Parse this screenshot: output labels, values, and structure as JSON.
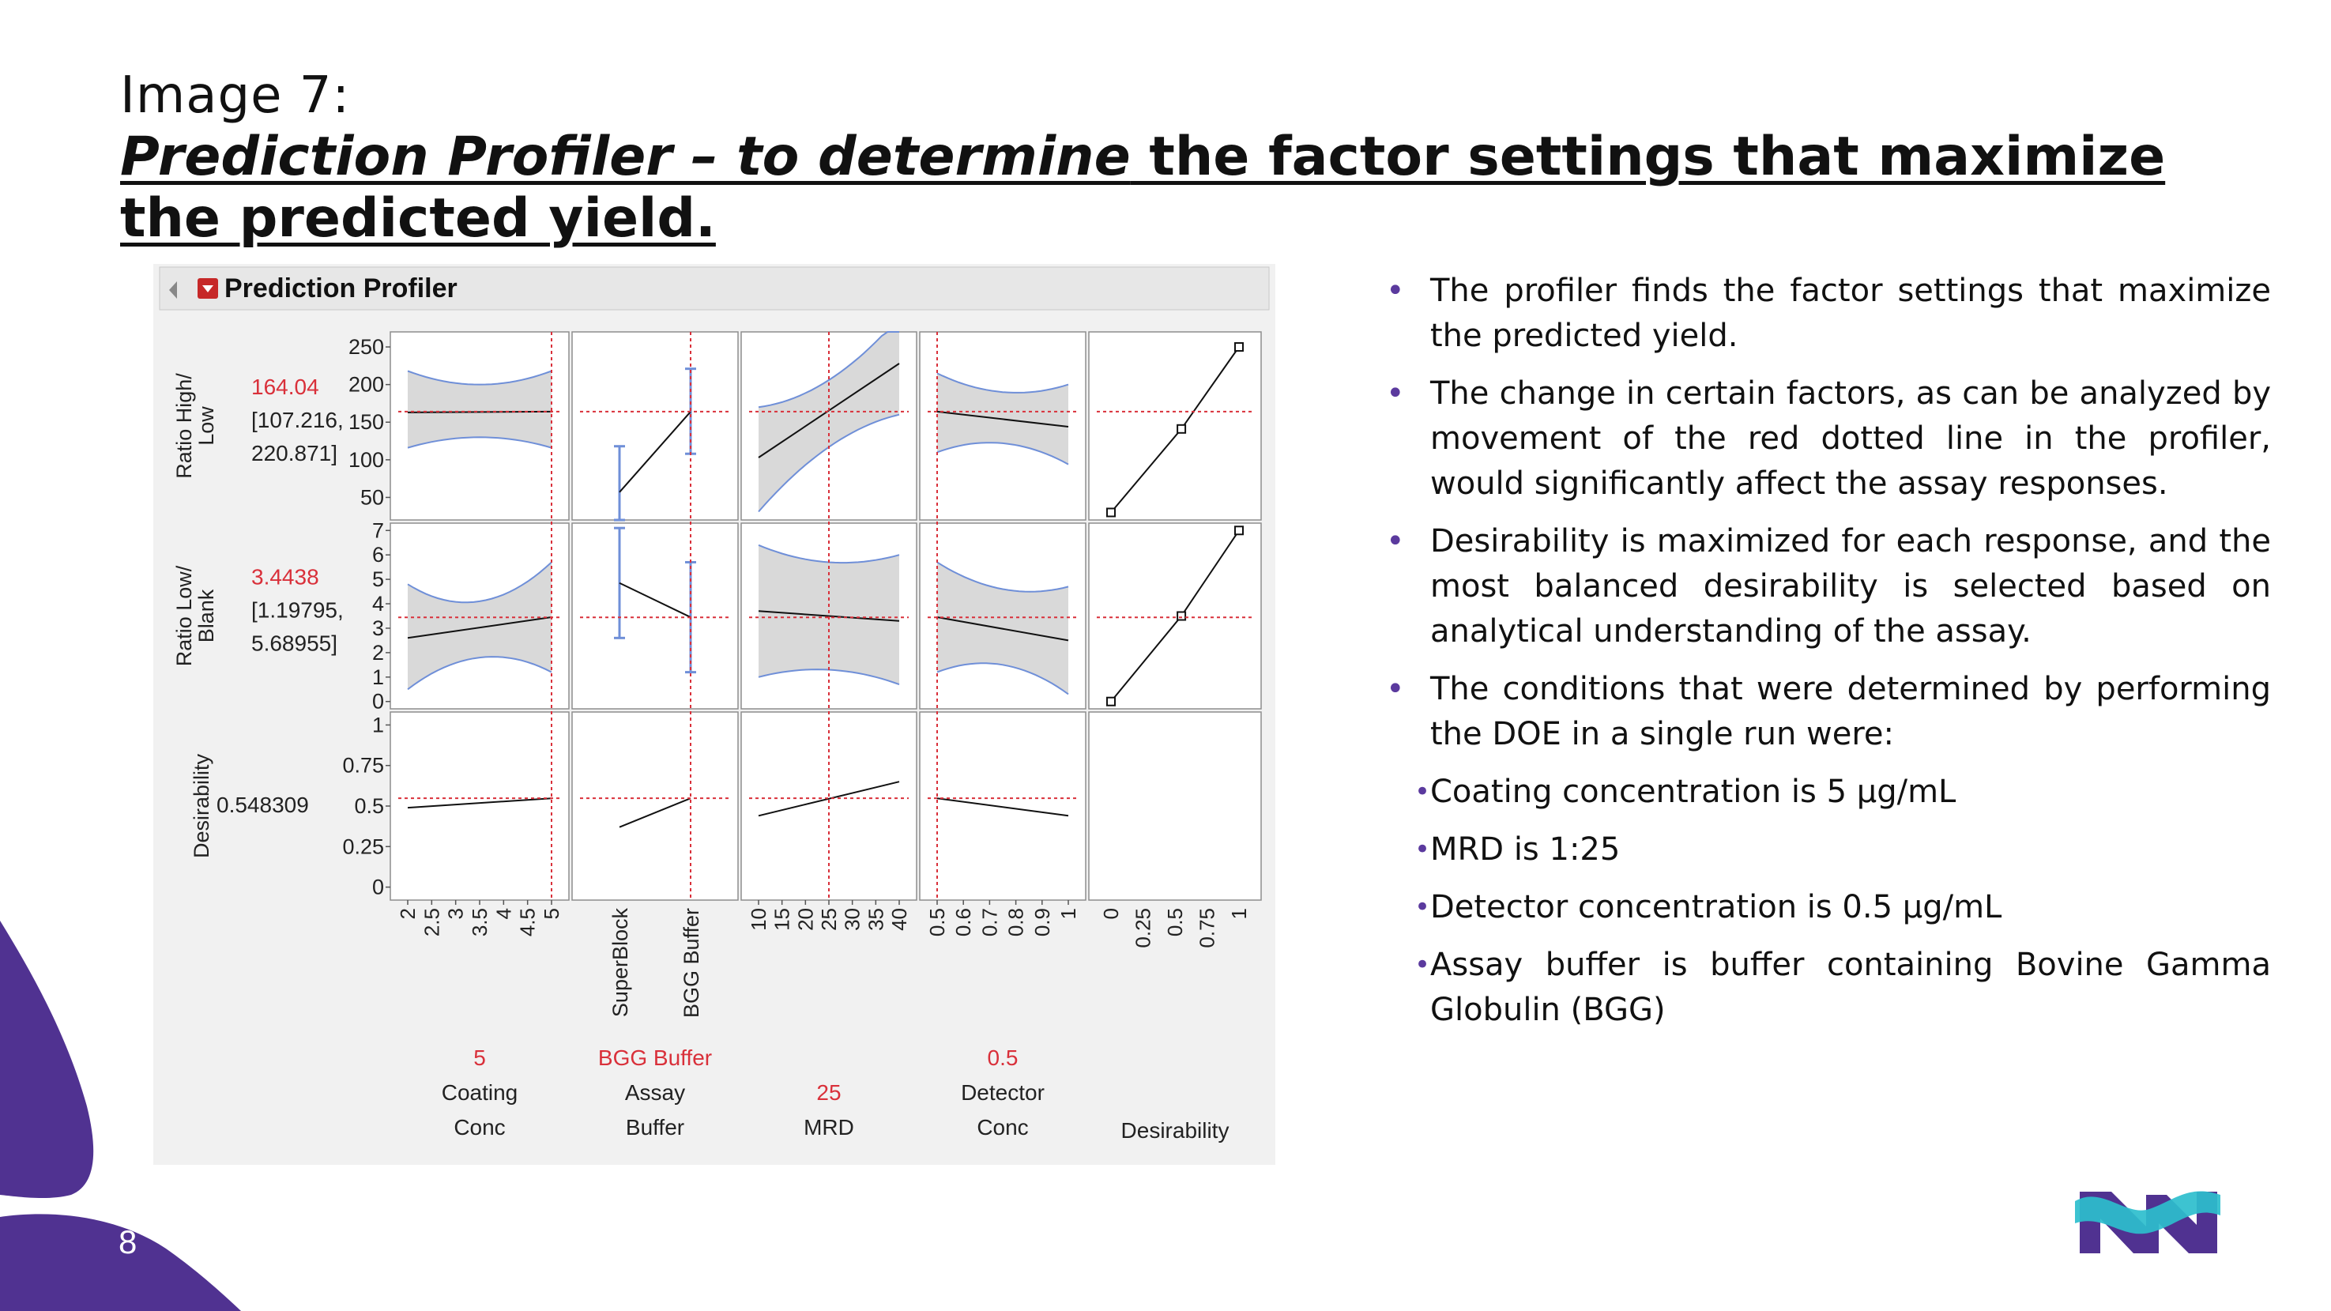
{
  "slide": {
    "heading": "Image 7:",
    "title_em": "Prediction Profiler – to determine",
    "title_rest": " the factor settings that maximize the predicted yield.",
    "page_number": "8"
  },
  "colors": {
    "accent_purple": "#503291",
    "logo_teal": "#2dbecd",
    "profiler_red": "#d9303a",
    "band_blue": "#6f8fd8"
  },
  "bullets": [
    "The profiler finds the factor settings that maximize the predicted yield.",
    "The change in certain factors, as can be analyzed by movement of the red dotted line in the profiler, would significantly affect the assay responses.",
    "Desirability is maximized for each response, and the most balanced desirability is selected based on analytical understanding of the assay.",
    "The conditions that were determined by performing the DOE in a single run were:"
  ],
  "sub_bullets": [
    "Coating concentration is 5 µg/mL",
    "MRD is 1:25",
    "Detector concentration is 0.5 µg/mL",
    "Assay buffer is buffer containing Bovine Gamma Globulin (BGG)"
  ],
  "chart_data": {
    "type": "line",
    "title": "Prediction Profiler",
    "rows": [
      {
        "label_lines": [
          "Ratio High/",
          "Low"
        ],
        "value": "164.04",
        "ci_lines": [
          "[107.216,",
          "220.871]"
        ],
        "ylim": [
          20,
          270
        ],
        "ticks": [
          "250",
          "200",
          "150",
          "100",
          "50"
        ],
        "tick_values": [
          250,
          200,
          150,
          100,
          50
        ],
        "current": 164.04
      },
      {
        "label_lines": [
          "Ratio Low/",
          "Blank"
        ],
        "value": "3.4438",
        "ci_lines": [
          "[1.19795,",
          "5.68955]"
        ],
        "ylim": [
          -0.3,
          7.3
        ],
        "ticks": [
          "7",
          "6",
          "5",
          "4",
          "3",
          "2",
          "1",
          "0"
        ],
        "tick_values": [
          7,
          6,
          5,
          4,
          3,
          2,
          1,
          0
        ],
        "current": 3.4438
      },
      {
        "label_lines": [
          "Desirability"
        ],
        "value": "0.548309",
        "ci_lines": [],
        "ylim": [
          -0.08,
          1.08
        ],
        "ticks": [
          "1",
          "0.75",
          "0.5",
          "0.25",
          "0"
        ],
        "tick_values": [
          1,
          0.75,
          0.5,
          0.25,
          0
        ],
        "current": 0.548309
      }
    ],
    "columns": [
      {
        "label_lines": [
          "Coating",
          "Conc"
        ],
        "current_label": "5",
        "kind": "continuous",
        "xlim": [
          2,
          5
        ],
        "ticks": [
          "2",
          "2.5",
          "3",
          "3.5",
          "4",
          "4.5",
          "5"
        ],
        "tick_values": [
          2,
          2.5,
          3,
          3.5,
          4,
          4.5,
          5
        ],
        "current": 5
      },
      {
        "label_lines": [
          "Assay",
          "Buffer"
        ],
        "current_label": "BGG Buffer",
        "kind": "categorical",
        "categories": [
          "SuperBlock",
          "BGG Buffer"
        ],
        "current": 1
      },
      {
        "label_lines": [
          "MRD"
        ],
        "current_label": "25",
        "kind": "continuous",
        "xlim": [
          10,
          40
        ],
        "ticks": [
          "10",
          "15",
          "20",
          "25",
          "30",
          "35",
          "40"
        ],
        "tick_values": [
          10,
          15,
          20,
          25,
          30,
          35,
          40
        ],
        "current": 25
      },
      {
        "label_lines": [
          "Detector",
          "Conc"
        ],
        "current_label": "0.5",
        "kind": "continuous",
        "xlim": [
          0.5,
          1
        ],
        "ticks": [
          "0.5",
          "0.6",
          "0.7",
          "0.8",
          "0.9",
          "1"
        ],
        "tick_values": [
          0.5,
          0.6,
          0.7,
          0.8,
          0.9,
          1
        ],
        "current": 0.5
      }
    ],
    "desirability_column": {
      "label_lines": [
        "Desirability"
      ],
      "xlim": [
        0,
        1
      ],
      "ticks": [
        "0",
        "0.25",
        "0.5",
        "0.75",
        "1"
      ],
      "tick_values": [
        0,
        0.25,
        0.5,
        0.75,
        1
      ]
    },
    "traces": [
      [
        {
          "x": [
            2,
            5
          ],
          "y": [
            163,
            164
          ],
          "lo": [
            [
              2,
              116
            ],
            [
              3.5,
              130
            ],
            [
              5,
              116
            ]
          ],
          "hi": [
            [
              2,
              218
            ],
            [
              3.5,
              200
            ],
            [
              5,
              218
            ]
          ]
        },
        {
          "points": [
            [
              0,
              57
            ],
            [
              1,
              164
            ]
          ],
          "lo": [
            18,
            108
          ],
          "hi": [
            118,
            221
          ]
        },
        {
          "x": [
            10,
            40
          ],
          "y": [
            103,
            228
          ],
          "lo": [
            [
              10,
              31
            ],
            [
              25,
              117
            ],
            [
              40,
              160
            ]
          ],
          "hi": [
            [
              10,
              170
            ],
            [
              25,
              206
            ],
            [
              40,
              290
            ]
          ]
        },
        {
          "x": [
            0.5,
            1
          ],
          "y": [
            164,
            144
          ],
          "lo": [
            [
              0.5,
              110
            ],
            [
              0.75,
              122
            ],
            [
              1,
              94
            ]
          ],
          "hi": [
            [
              0.5,
              215
            ],
            [
              0.75,
              190
            ],
            [
              1,
              200
            ]
          ]
        },
        {
          "x": [
            0,
            0.55,
            1
          ],
          "y": [
            30,
            141,
            250
          ],
          "markers": true
        }
      ],
      [
        {
          "x": [
            2,
            5
          ],
          "y": [
            2.6,
            3.45
          ],
          "lo": [
            [
              2,
              0.5
            ],
            [
              3.5,
              1.8
            ],
            [
              5,
              1.2
            ]
          ],
          "hi": [
            [
              2,
              4.8
            ],
            [
              3.5,
              4.1
            ],
            [
              5,
              5.7
            ]
          ]
        },
        {
          "points": [
            [
              0,
              4.85
            ],
            [
              1,
              3.45
            ]
          ],
          "lo": [
            2.6,
            1.2
          ],
          "hi": [
            7.1,
            5.7
          ]
        },
        {
          "x": [
            10,
            40
          ],
          "y": [
            3.7,
            3.3
          ],
          "lo": [
            [
              10,
              1.0
            ],
            [
              25,
              1.3
            ],
            [
              40,
              0.7
            ]
          ],
          "hi": [
            [
              10,
              6.4
            ],
            [
              25,
              5.7
            ],
            [
              40,
              6.0
            ]
          ]
        },
        {
          "x": [
            0.5,
            1
          ],
          "y": [
            3.45,
            2.5
          ],
          "lo": [
            [
              0.5,
              1.2
            ],
            [
              0.75,
              1.5
            ],
            [
              1,
              0.3
            ]
          ],
          "hi": [
            [
              0.5,
              5.7
            ],
            [
              0.75,
              4.6
            ],
            [
              1,
              4.7
            ]
          ]
        },
        {
          "x": [
            0,
            0.55,
            1
          ],
          "y": [
            0,
            3.5,
            7.0
          ],
          "markers": true
        }
      ],
      [
        {
          "x": [
            2,
            5
          ],
          "y": [
            0.49,
            0.548
          ]
        },
        {
          "points": [
            [
              0,
              0.37
            ],
            [
              1,
              0.548
            ]
          ]
        },
        {
          "x": [
            10,
            40
          ],
          "y": [
            0.44,
            0.65
          ]
        },
        {
          "x": [
            0.5,
            1
          ],
          "y": [
            0.548,
            0.44
          ]
        },
        null
      ]
    ]
  }
}
